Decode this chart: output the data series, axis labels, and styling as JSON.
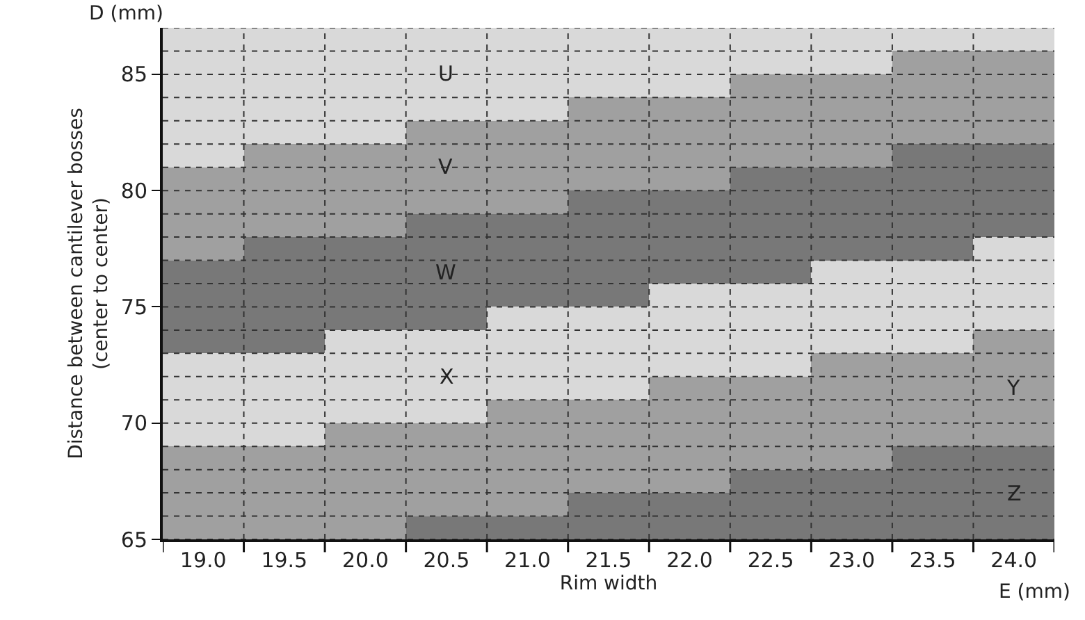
{
  "chart_data": {
    "type": "bar",
    "xlabel": "Rim width",
    "ylabel": "Distance between cantilever bosses\n(center to center)",
    "categories": [
      "19.0",
      "19.5",
      "20.0",
      "20.5",
      "21.0",
      "21.5",
      "22.0",
      "22.5",
      "23.0",
      "23.5",
      "24.0"
    ],
    "series": [
      {
        "name": "Z",
        "color": "#787878",
        "base": [
          null,
          null,
          null,
          65,
          65,
          65,
          65,
          65,
          65,
          65,
          65
        ],
        "values": [
          null,
          null,
          null,
          1,
          1,
          2,
          2,
          3,
          3,
          4,
          4
        ]
      },
      {
        "name": "Y",
        "color": "#a0a0a0",
        "base": [
          65,
          65,
          65,
          66,
          66,
          67,
          67,
          68,
          68,
          69,
          69
        ],
        "values": [
          4,
          4,
          5,
          4,
          5,
          4,
          5,
          4,
          5,
          4,
          5
        ]
      },
      {
        "name": "X",
        "color": "#d9d9d9",
        "base": [
          69,
          69,
          70,
          70,
          71,
          71,
          72,
          72,
          73,
          73,
          74
        ],
        "values": [
          4,
          4,
          4,
          4,
          4,
          4,
          4,
          4,
          4,
          4,
          4
        ]
      },
      {
        "name": "W",
        "color": "#787878",
        "base": [
          73,
          73,
          74,
          74,
          75,
          75,
          76,
          76,
          77,
          77,
          78
        ],
        "values": [
          4,
          5,
          4,
          5,
          4,
          5,
          4,
          5,
          4,
          5,
          4
        ]
      },
      {
        "name": "V",
        "color": "#a0a0a0",
        "base": [
          77,
          78,
          78,
          79,
          79,
          80,
          80,
          81,
          81,
          82,
          82
        ],
        "values": [
          4,
          4,
          4,
          4,
          4,
          4,
          4,
          4,
          4,
          4,
          4
        ]
      },
      {
        "name": "U",
        "color": "#d9d9d9",
        "base": [
          81,
          82,
          82,
          83,
          83,
          84,
          84,
          85,
          85,
          86,
          86
        ],
        "values": [
          6,
          5,
          5,
          4,
          4,
          3,
          3,
          2,
          2,
          1,
          1
        ]
      }
    ],
    "ylim": [
      65,
      87
    ],
    "yticks": [
      65,
      {
        "value": 66,
        "label": null
      },
      {
        "value": 67,
        "label": null
      },
      {
        "value": 68,
        "label": null
      },
      {
        "value": 69,
        "label": null
      },
      70,
      {
        "value": 71,
        "label": null
      },
      {
        "value": 72,
        "label": null
      },
      {
        "value": 73,
        "label": null
      },
      {
        "value": 74,
        "label": null
      },
      75,
      {
        "value": 76,
        "label": null
      },
      {
        "value": 77,
        "label": null
      },
      {
        "value": 78,
        "label": null
      },
      {
        "value": 79,
        "label": null
      },
      80,
      {
        "value": 81,
        "label": null
      },
      {
        "value": 82,
        "label": null
      },
      {
        "value": 83,
        "label": null
      },
      {
        "value": 84,
        "label": null
      },
      85,
      {
        "value": 86,
        "label": null
      },
      {
        "value": 87,
        "label": null
      }
    ],
    "grid": true,
    "annotations": [
      "D (mm)",
      "E (mm)"
    ]
  }
}
